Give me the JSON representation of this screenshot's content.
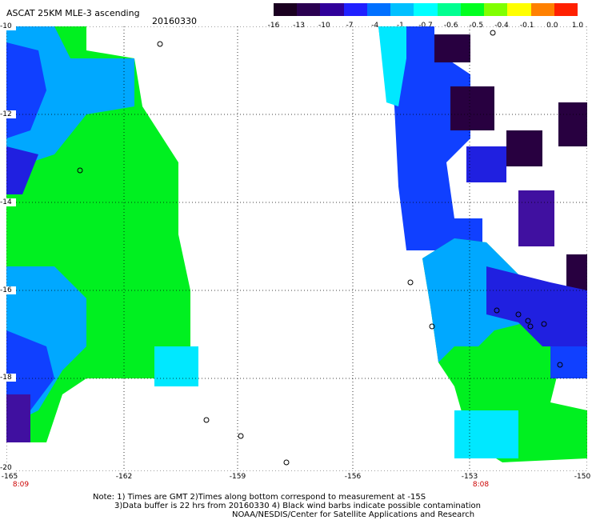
{
  "header": {
    "title": "ASCAT 25KM MLE-3 ascending",
    "date": "20160330"
  },
  "colorbar": {
    "labels": [
      "-16",
      "-13",
      "-10",
      "-7",
      "-4",
      "-1",
      "-0.7",
      "-0.6",
      "-0.5",
      "-0.4",
      "-0.1",
      "0.0",
      "1.0"
    ],
    "colors": [
      "#1a0020",
      "#2a0050",
      "#30009a",
      "#2020ff",
      "#0070ff",
      "#00c0ff",
      "#00ffff",
      "#00ff90",
      "#00ff20",
      "#80ff00",
      "#ffff00",
      "#ff8000",
      "#ff2000"
    ]
  },
  "axes": {
    "lat_labels": [
      "-10",
      "-12",
      "-14",
      "-16",
      "-18",
      "-20"
    ],
    "lon_labels": [
      "-165",
      "-162",
      "-159",
      "-156",
      "-153",
      "-150"
    ],
    "time_labels": [
      "8:09",
      "8:08"
    ]
  },
  "notes": {
    "line1": "Note: 1) Times are GMT 2)Times along bottom correspond to measurement at -15S",
    "line2": "3)Data buffer is 22 hrs from 20160330 4) Black wind barbs indicate possible contamination",
    "line3": "NOAA/NESDIS/Center for Satellite Applications and Research"
  }
}
